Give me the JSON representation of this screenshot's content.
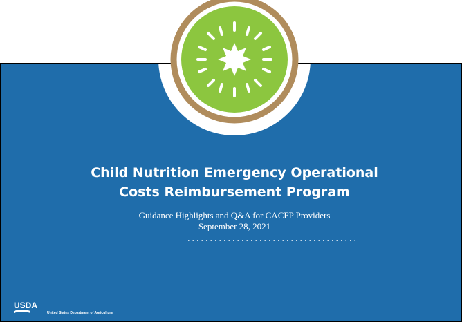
{
  "slide": {
    "title": [
      "Child Nutrition Emergency Operational",
      "Costs Reimbursement Program"
    ],
    "subtitle": "Guidance Highlights and Q&A for CACFP Providers",
    "date": "September 28, 2021",
    "logo": "USDA",
    "agency": "United States Department of Agriculture"
  }
}
